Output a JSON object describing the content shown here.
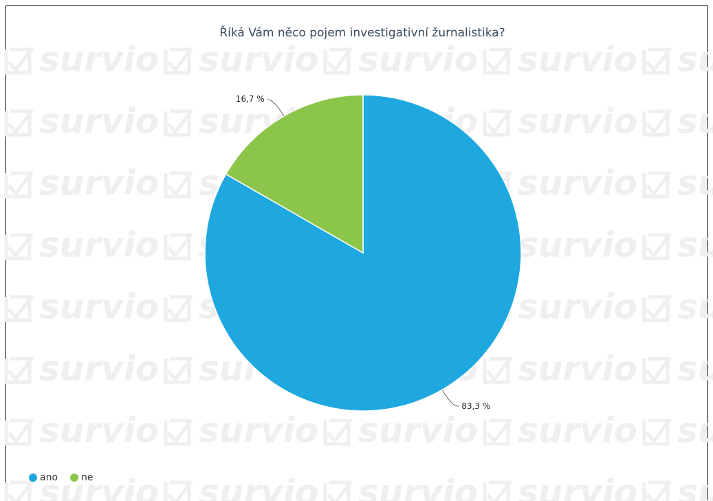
{
  "chart_data": {
    "type": "pie",
    "title": "Říká Vám něco pojem investigativní žurnalistika?",
    "watermark": "survio",
    "categories": [
      "ano",
      "ne"
    ],
    "values": [
      83.3,
      16.7
    ],
    "value_labels": [
      "83,3 %",
      "16,7 %"
    ],
    "colors": [
      "#1fa8e0",
      "#8bc54a"
    ],
    "legend": "bottom-left"
  }
}
